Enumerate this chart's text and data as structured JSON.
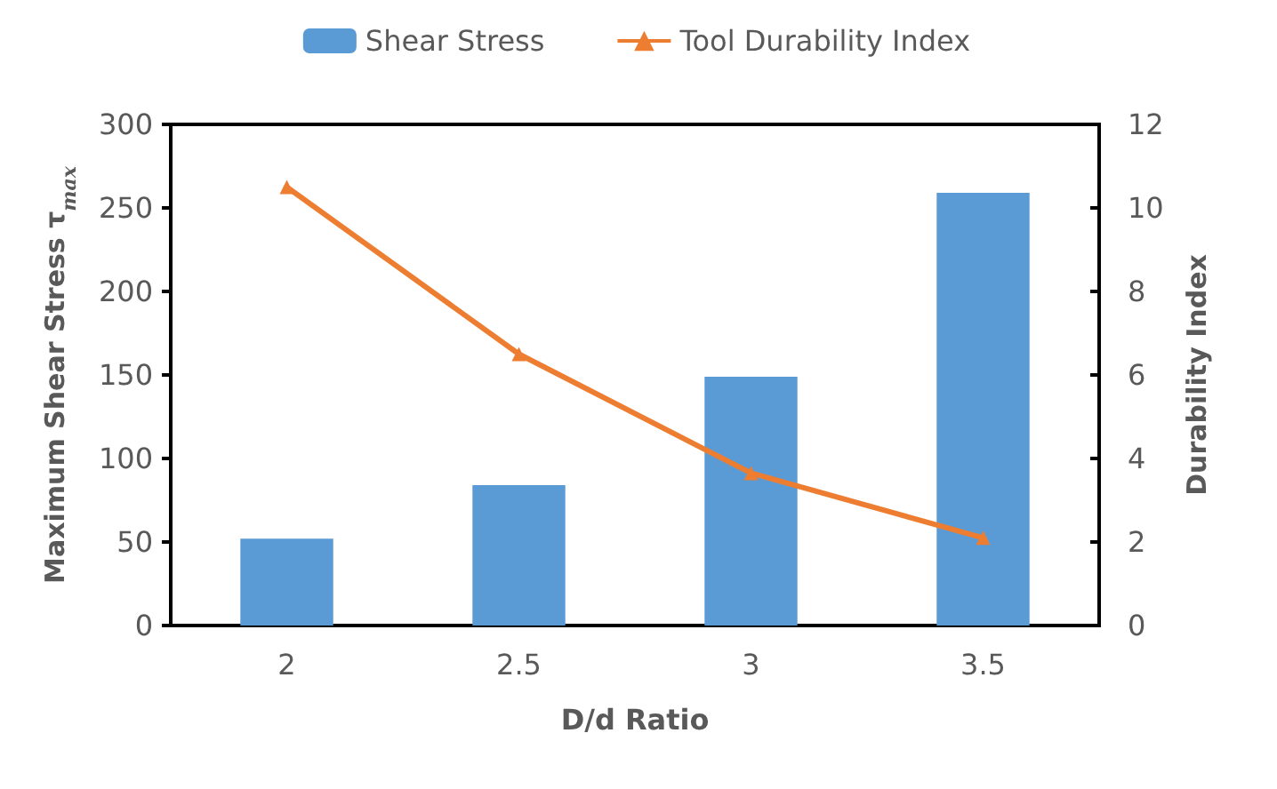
{
  "chart_data": {
    "type": "bar",
    "xlabel": "D/d Ratio",
    "ylabel": "Maximum Shear Stress τ$_{max}$",
    "y2label": "Durability Index",
    "categories": [
      "2",
      "2.5",
      "3",
      "3.5"
    ],
    "series": [
      {
        "name": "Shear Stress",
        "color": "#5b9bd5",
        "values": [
          52,
          84,
          149,
          259
        ]
      },
      {
        "name": "Tool Durability Index",
        "type": "line",
        "axis": "y2",
        "color": "#ed7d31",
        "marker": "triangle",
        "values": [
          10.5,
          6.5,
          3.65,
          2.1
        ]
      }
    ],
    "ylim": [
      0,
      300
    ],
    "yticks": [
      0,
      50,
      100,
      150,
      200,
      250,
      300
    ],
    "y2lim": [
      0,
      12
    ],
    "y2ticks": [
      0,
      2,
      4,
      6,
      8,
      10,
      12
    ],
    "grid": false,
    "legend": "top"
  }
}
